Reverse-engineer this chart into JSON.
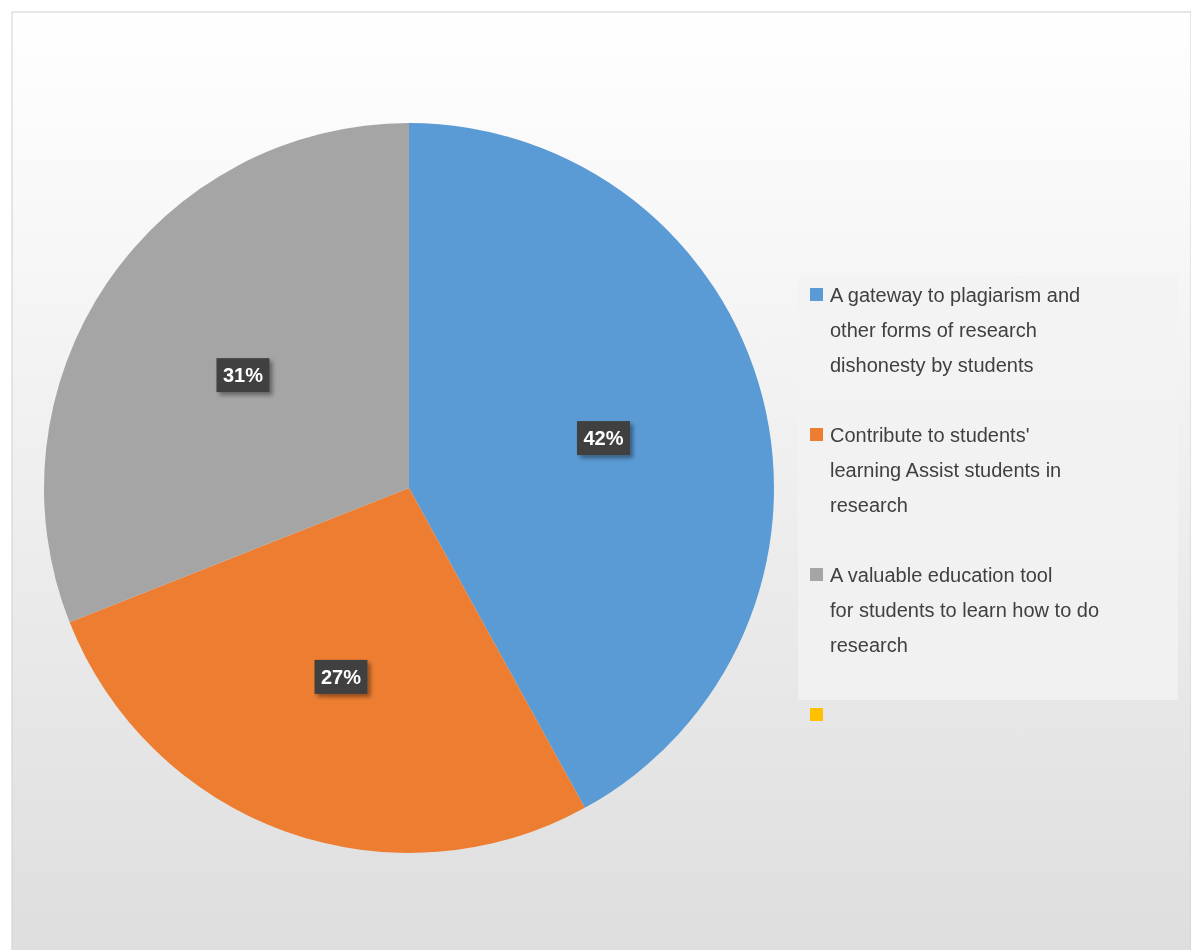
{
  "chart_data": {
    "type": "pie",
    "categories": [
      "A gateway to plagiarism and other forms of research dishonesty by students",
      "Contribute to students' learning Assist students in research",
      "A valuable education tool for students to learn how to do research",
      null
    ],
    "values": [
      42,
      27,
      31,
      0
    ],
    "colors": [
      "#5b9bd5",
      "#ed7d31",
      "#a5a5a5",
      "#ffc000"
    ],
    "value_labels": [
      "42%",
      "27%",
      "31%",
      null
    ],
    "legend": "right"
  }
}
